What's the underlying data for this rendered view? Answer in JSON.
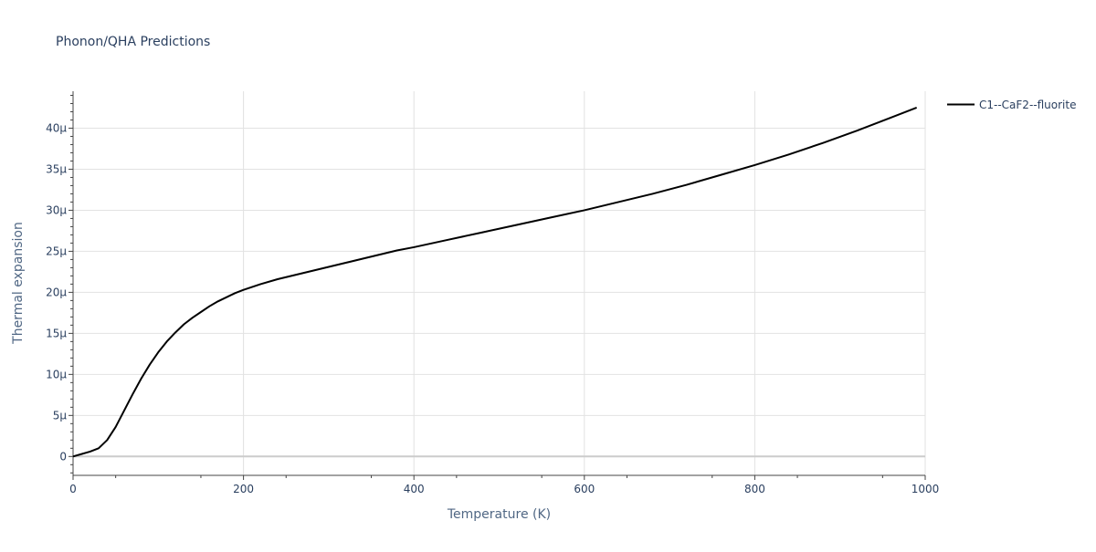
{
  "chart_data": {
    "type": "line",
    "title": "Phonon/QHA Predictions",
    "xlabel": "Temperature (K)",
    "ylabel": "Thermal expansion",
    "xlim": [
      0,
      1000
    ],
    "ylim": [
      -2.3e-06,
      4.45e-05
    ],
    "x_ticks": [
      0,
      200,
      400,
      600,
      800,
      1000
    ],
    "x_tick_labels": [
      "0",
      "200",
      "400",
      "600",
      "800",
      "1000"
    ],
    "y_ticks": [
      0,
      5e-06,
      1e-05,
      1.5e-05,
      2e-05,
      2.5e-05,
      3e-05,
      3.5e-05,
      4e-05
    ],
    "y_tick_labels": [
      "0",
      "5μ",
      "10μ",
      "15μ",
      "20μ",
      "25μ",
      "30μ",
      "35μ",
      "40μ"
    ],
    "grid": true,
    "legend_position": "top-right",
    "series": [
      {
        "name": "C1--CaF2--fluorite",
        "color": "#000000",
        "x": [
          0,
          10,
          20,
          30,
          40,
          50,
          60,
          70,
          80,
          90,
          100,
          110,
          120,
          130,
          140,
          150,
          160,
          170,
          180,
          190,
          200,
          220,
          240,
          260,
          280,
          300,
          320,
          340,
          360,
          380,
          400,
          440,
          480,
          520,
          560,
          600,
          640,
          680,
          720,
          760,
          800,
          840,
          880,
          920,
          960,
          990
        ],
        "y": [
          0,
          3e-07,
          6e-07,
          1e-06,
          2e-06,
          3.6e-06,
          5.6e-06,
          7.6e-06,
          9.5e-06,
          1.12e-05,
          1.27e-05,
          1.4e-05,
          1.51e-05,
          1.61e-05,
          1.69e-05,
          1.76e-05,
          1.83e-05,
          1.89e-05,
          1.94e-05,
          1.99e-05,
          2.03e-05,
          2.1e-05,
          2.16e-05,
          2.21e-05,
          2.26e-05,
          2.31e-05,
          2.36e-05,
          2.41e-05,
          2.46e-05,
          2.51e-05,
          2.55e-05,
          2.64e-05,
          2.73e-05,
          2.82e-05,
          2.91e-05,
          3e-05,
          3.1e-05,
          3.2e-05,
          3.31e-05,
          3.43e-05,
          3.55e-05,
          3.68e-05,
          3.82e-05,
          3.97e-05,
          4.13e-05,
          4.25e-05
        ]
      }
    ]
  }
}
